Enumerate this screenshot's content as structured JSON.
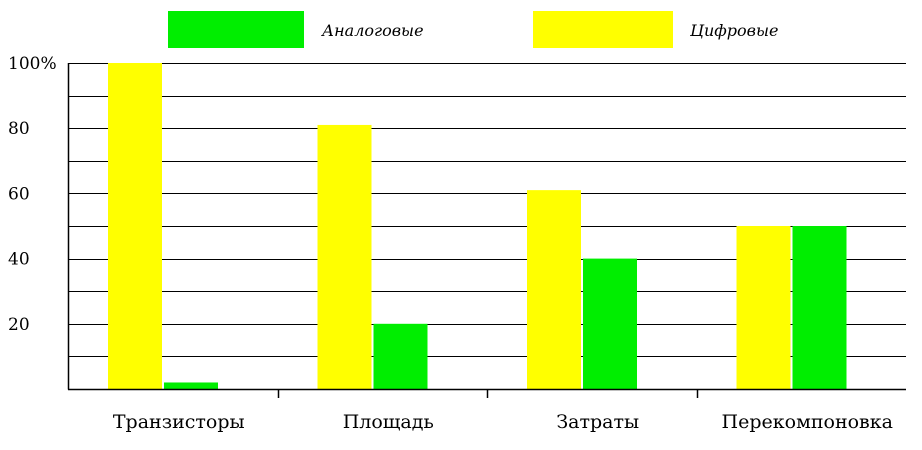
{
  "chart_data": {
    "type": "bar",
    "title": "",
    "xlabel": "",
    "ylabel": "",
    "ylim": [
      0,
      100
    ],
    "y_ticks": [
      {
        "value": 20,
        "label": "20"
      },
      {
        "value": 40,
        "label": "40"
      },
      {
        "value": 60,
        "label": "60"
      },
      {
        "value": 80,
        "label": "80"
      },
      {
        "value": 100,
        "label": "100%"
      }
    ],
    "grid": true,
    "legend_position": "top",
    "categories": [
      "Транзисторы",
      "Площадь",
      "Затраты",
      "Перекомпоновка"
    ],
    "series": [
      {
        "name": "Цифровые",
        "color": "#ffff00",
        "values": [
          100,
          81,
          61,
          50
        ]
      },
      {
        "name": "Аналоговые",
        "color": "#00ee00",
        "values": [
          2,
          20,
          40,
          50
        ]
      }
    ]
  }
}
